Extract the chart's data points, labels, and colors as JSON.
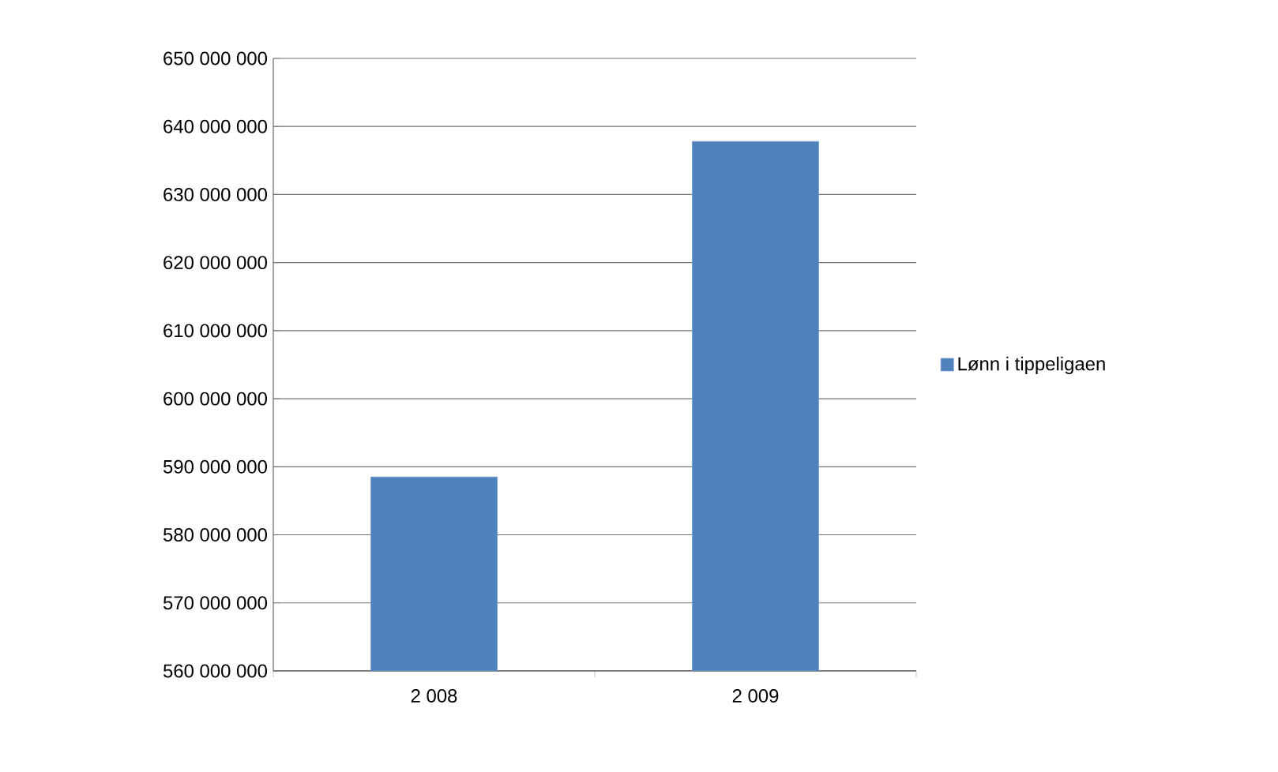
{
  "chart_data": {
    "type": "bar",
    "categories": [
      "2 008",
      "2 009"
    ],
    "series": [
      {
        "name": "Lønn i tippeligaen",
        "color": "#4f81bd",
        "values": [
          588500000,
          637800000
        ]
      }
    ],
    "ylim": [
      560000000,
      650000000
    ],
    "yticks": [
      {
        "value": 560000000,
        "label": "560 000 000"
      },
      {
        "value": 570000000,
        "label": "570 000 000"
      },
      {
        "value": 580000000,
        "label": "580 000 000"
      },
      {
        "value": 590000000,
        "label": "590 000 000"
      },
      {
        "value": 600000000,
        "label": "600 000 000"
      },
      {
        "value": 610000000,
        "label": "610 000 000"
      },
      {
        "value": 620000000,
        "label": "620 000 000"
      },
      {
        "value": 630000000,
        "label": "630 000 000"
      },
      {
        "value": 640000000,
        "label": "640 000 000"
      },
      {
        "value": 650000000,
        "label": "650 000 000"
      }
    ],
    "grid": "y",
    "legend": "right"
  }
}
